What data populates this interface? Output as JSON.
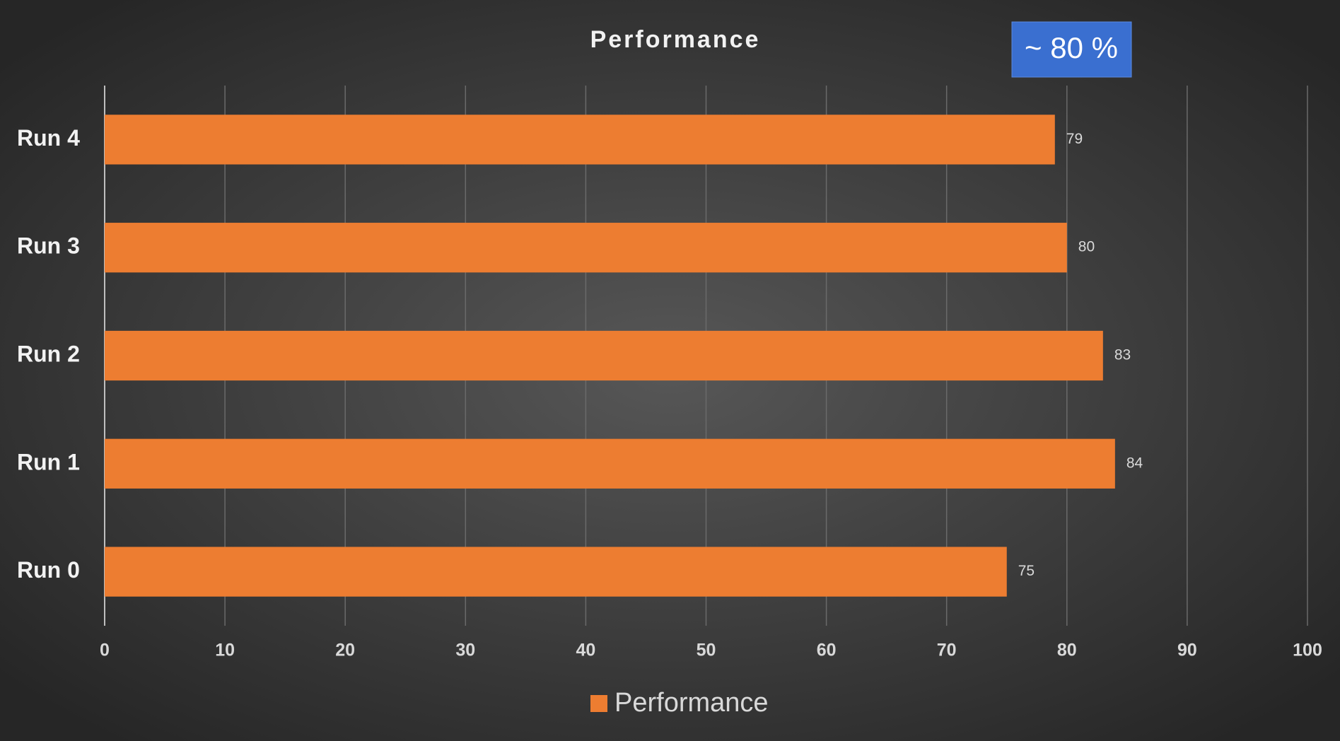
{
  "chart_data": {
    "type": "barh",
    "title": "Performance",
    "categories": [
      "Run 0",
      "Run 1",
      "Run 2",
      "Run 3",
      "Run 4"
    ],
    "series": [
      {
        "name": "Performance",
        "color": "#ed7d31",
        "values": [
          75,
          84,
          83,
          80,
          79
        ]
      }
    ],
    "xlim": [
      0,
      100
    ],
    "xticks": [
      0,
      10,
      20,
      30,
      40,
      50,
      60,
      70,
      80,
      90,
      100
    ],
    "grid": true,
    "legend": "bottom",
    "annotation": "~ 80 %"
  }
}
